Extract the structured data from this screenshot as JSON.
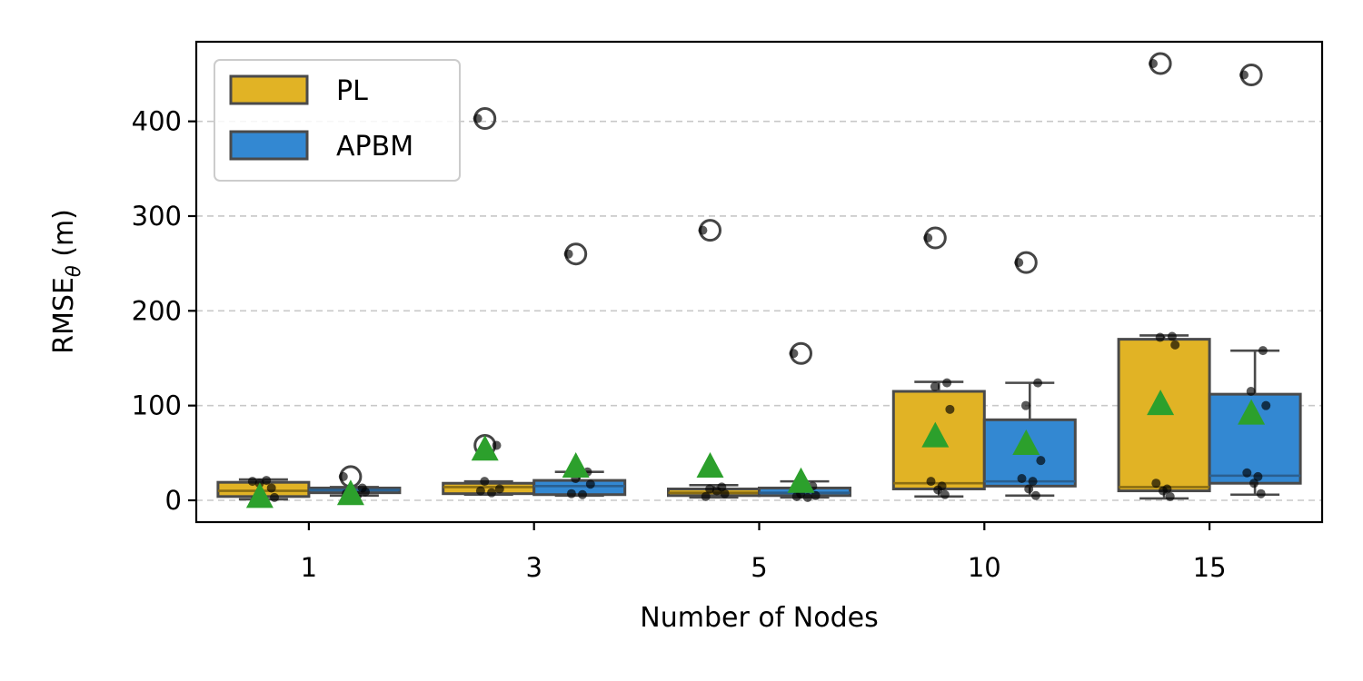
{
  "chart_data": {
    "type": "box",
    "xlabel": "Number of Nodes",
    "ylabel_main": "RMSE",
    "ylabel_sub": "θ",
    "ylabel_unit": " (m)",
    "categories": [
      "1",
      "3",
      "5",
      "10",
      "15"
    ],
    "yticks": [
      "0",
      "100",
      "200",
      "300",
      "400"
    ],
    "ylim": [
      -23,
      484
    ],
    "grid": "horizontal-dashed",
    "legend_position": "top-left",
    "mean_color": "#2ca02c",
    "series": [
      {
        "name": "PL",
        "color": "#e1b325",
        "boxes": [
          {
            "q1": 4,
            "median": 10,
            "q3": 19,
            "whisker_low": 1,
            "whisker_high": 22,
            "mean": 4,
            "outliers": [],
            "points": [
              20,
              13,
              18,
              3,
              1,
              21
            ]
          },
          {
            "q1": 7,
            "median": 14,
            "q3": 18,
            "whisker_low": 6,
            "whisker_high": 20,
            "mean": 54,
            "outliers": [
              403,
              58
            ],
            "points": [
              403,
              58,
              20,
              12,
              10,
              8
            ]
          },
          {
            "q1": 5,
            "median": 8,
            "q3": 12,
            "whisker_low": 3,
            "whisker_high": 16,
            "mean": 36,
            "outliers": [
              285
            ],
            "points": [
              285,
              14,
              12,
              7,
              4,
              10
            ]
          },
          {
            "q1": 12,
            "median": 18,
            "q3": 115,
            "whisker_low": 4,
            "whisker_high": 125,
            "mean": 68,
            "outliers": [
              277
            ],
            "points": [
              277,
              124,
              120,
              96,
              20,
              15,
              11,
              6
            ]
          },
          {
            "q1": 10,
            "median": 14,
            "q3": 170,
            "whisker_low": 2,
            "whisker_high": 174,
            "mean": 102,
            "outliers": [
              461
            ],
            "points": [
              461,
              173,
              172,
              164,
              18,
              12,
              10,
              4
            ]
          }
        ]
      },
      {
        "name": "APBM",
        "color": "#3388d2",
        "boxes": [
          {
            "q1": 8,
            "median": 11,
            "q3": 13,
            "whisker_low": 5,
            "whisker_high": 14,
            "mean": 7,
            "outliers": [
              25
            ],
            "points": [
              25,
              13,
              11,
              9,
              7,
              5
            ]
          },
          {
            "q1": 6,
            "median": 15,
            "q3": 21,
            "whisker_low": 5,
            "whisker_high": 30,
            "mean": 36,
            "outliers": [
              260
            ],
            "points": [
              260,
              30,
              23,
              17,
              7,
              6
            ]
          },
          {
            "q1": 5,
            "median": 8,
            "q3": 13,
            "whisker_low": 3,
            "whisker_high": 20,
            "mean": 20,
            "outliers": [
              155
            ],
            "points": [
              155,
              15,
              7,
              5,
              4,
              3
            ]
          },
          {
            "q1": 15,
            "median": 20,
            "q3": 85,
            "whisker_low": 5,
            "whisker_high": 124,
            "mean": 60,
            "outliers": [
              251
            ],
            "points": [
              251,
              124,
              100,
              42,
              23,
              20,
              12,
              5
            ]
          },
          {
            "q1": 18,
            "median": 26,
            "q3": 112,
            "whisker_low": 6,
            "whisker_high": 158,
            "mean": 92,
            "outliers": [
              449
            ],
            "points": [
              449,
              158,
              115,
              100,
              29,
              25,
              18,
              7
            ]
          }
        ]
      }
    ]
  }
}
